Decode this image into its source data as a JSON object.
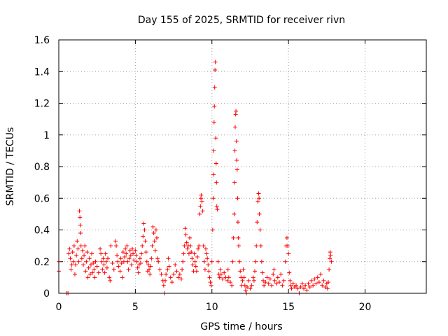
{
  "colors": {
    "series": "#ff0000",
    "grid": "#a0a0a0",
    "frame": "#000000"
  },
  "chart_data": {
    "type": "scatter",
    "title": "Day 155 of 2025, SRMTID for receiver rivn",
    "xlabel": "GPS time / hours",
    "ylabel": "SRMTID / TECUs",
    "xlim": [
      0,
      24
    ],
    "ylim": [
      0,
      1.6
    ],
    "xticks": [
      0,
      5,
      10,
      15,
      20
    ],
    "xtick_labels": [
      "0",
      "5",
      "10",
      "15",
      "20"
    ],
    "yticks": [
      0,
      0.2,
      0.4,
      0.6,
      0.8,
      1.0,
      1.2,
      1.4,
      1.6
    ],
    "ytick_labels": [
      "0",
      "0.2",
      "0.4",
      "0.6",
      "0.8",
      "1",
      "1.2",
      "1.4",
      "1.6"
    ],
    "grid": true,
    "marker": "plus",
    "series": [
      {
        "name": "SRMTID",
        "points": [
          [
            0.0,
            0.2
          ],
          [
            0.0,
            0.14
          ],
          [
            0.5,
            0.0
          ],
          [
            0.6,
            0.0
          ],
          [
            0.65,
            0.25
          ],
          [
            0.7,
            0.28
          ],
          [
            0.75,
            0.22
          ],
          [
            0.8,
            0.15
          ],
          [
            0.85,
            0.18
          ],
          [
            0.9,
            0.26
          ],
          [
            0.95,
            0.2
          ],
          [
            1.0,
            0.3
          ],
          [
            1.05,
            0.12
          ],
          [
            1.1,
            0.18
          ],
          [
            1.15,
            0.24
          ],
          [
            1.2,
            0.33
          ],
          [
            1.25,
            0.28
          ],
          [
            1.3,
            0.2
          ],
          [
            1.35,
            0.52
          ],
          [
            1.38,
            0.48
          ],
          [
            1.4,
            0.43
          ],
          [
            1.42,
            0.38
          ],
          [
            1.45,
            0.3
          ],
          [
            1.5,
            0.22
          ],
          [
            1.55,
            0.27
          ],
          [
            1.6,
            0.18
          ],
          [
            1.65,
            0.24
          ],
          [
            1.7,
            0.3
          ],
          [
            1.75,
            0.14
          ],
          [
            1.8,
            0.2
          ],
          [
            1.85,
            0.26
          ],
          [
            1.9,
            0.1
          ],
          [
            1.95,
            0.16
          ],
          [
            2.0,
            0.22
          ],
          [
            2.05,
            0.12
          ],
          [
            2.1,
            0.18
          ],
          [
            2.15,
            0.25
          ],
          [
            2.2,
            0.13
          ],
          [
            2.25,
            0.19
          ],
          [
            2.3,
            0.15
          ],
          [
            2.35,
            0.1
          ],
          [
            2.4,
            0.2
          ],
          [
            2.5,
            0.17
          ],
          [
            2.6,
            0.13
          ],
          [
            2.7,
            0.28
          ],
          [
            2.75,
            0.25
          ],
          [
            2.8,
            0.2
          ],
          [
            2.85,
            0.15
          ],
          [
            2.9,
            0.22
          ],
          [
            2.95,
            0.18
          ],
          [
            3.0,
            0.13
          ],
          [
            3.05,
            0.25
          ],
          [
            3.1,
            0.2
          ],
          [
            3.15,
            0.16
          ],
          [
            3.2,
            0.22
          ],
          [
            3.3,
            0.1
          ],
          [
            3.35,
            0.08
          ],
          [
            3.4,
            0.3
          ],
          [
            3.5,
            0.19
          ],
          [
            3.6,
            0.15
          ],
          [
            3.7,
            0.33
          ],
          [
            3.75,
            0.3
          ],
          [
            3.8,
            0.24
          ],
          [
            3.85,
            0.2
          ],
          [
            3.9,
            0.17
          ],
          [
            4.0,
            0.14
          ],
          [
            4.05,
            0.22
          ],
          [
            4.1,
            0.19
          ],
          [
            4.15,
            0.1
          ],
          [
            4.2,
            0.26
          ],
          [
            4.25,
            0.2
          ],
          [
            4.3,
            0.23
          ],
          [
            4.35,
            0.28
          ],
          [
            4.4,
            0.25
          ],
          [
            4.45,
            0.3
          ],
          [
            4.5,
            0.2
          ],
          [
            4.55,
            0.15
          ],
          [
            4.6,
            0.22
          ],
          [
            4.65,
            0.27
          ],
          [
            4.7,
            0.24
          ],
          [
            4.75,
            0.18
          ],
          [
            4.8,
            0.28
          ],
          [
            4.85,
            0.25
          ],
          [
            4.9,
            0.21
          ],
          [
            5.0,
            0.27
          ],
          [
            5.05,
            0.24
          ],
          [
            5.1,
            0.2
          ],
          [
            5.15,
            0.16
          ],
          [
            5.2,
            0.13
          ],
          [
            5.25,
            0.18
          ],
          [
            5.3,
            0.22
          ],
          [
            5.35,
            0.19
          ],
          [
            5.4,
            0.25
          ],
          [
            5.45,
            0.3
          ],
          [
            5.5,
            0.36
          ],
          [
            5.55,
            0.44
          ],
          [
            5.6,
            0.4
          ],
          [
            5.65,
            0.33
          ],
          [
            5.7,
            0.26
          ],
          [
            5.75,
            0.2
          ],
          [
            5.8,
            0.14
          ],
          [
            5.85,
            0.18
          ],
          [
            5.9,
            0.15
          ],
          [
            5.95,
            0.12
          ],
          [
            6.0,
            0.17
          ],
          [
            6.05,
            0.22
          ],
          [
            6.1,
            0.3
          ],
          [
            6.15,
            0.42
          ],
          [
            6.2,
            0.38
          ],
          [
            6.25,
            0.33
          ],
          [
            6.3,
            0.27
          ],
          [
            6.35,
            0.4
          ],
          [
            6.4,
            0.35
          ],
          [
            6.45,
            0.22
          ],
          [
            6.5,
            0.2
          ],
          [
            6.6,
            0.15
          ],
          [
            6.7,
            0.12
          ],
          [
            6.8,
            0.08
          ],
          [
            6.85,
            0.05
          ],
          [
            6.9,
            0.0
          ],
          [
            6.95,
            0.08
          ],
          [
            7.0,
            0.12
          ],
          [
            7.1,
            0.15
          ],
          [
            7.15,
            0.22
          ],
          [
            7.2,
            0.17
          ],
          [
            7.3,
            0.1
          ],
          [
            7.4,
            0.07
          ],
          [
            7.5,
            0.12
          ],
          [
            7.6,
            0.18
          ],
          [
            7.7,
            0.14
          ],
          [
            7.8,
            0.1
          ],
          [
            7.9,
            0.12
          ],
          [
            8.0,
            0.09
          ],
          [
            8.05,
            0.15
          ],
          [
            8.1,
            0.2
          ],
          [
            8.15,
            0.25
          ],
          [
            8.2,
            0.3
          ],
          [
            8.25,
            0.41
          ],
          [
            8.3,
            0.37
          ],
          [
            8.35,
            0.32
          ],
          [
            8.4,
            0.28
          ],
          [
            8.45,
            0.3
          ],
          [
            8.5,
            0.25
          ],
          [
            8.55,
            0.35
          ],
          [
            8.6,
            0.3
          ],
          [
            8.65,
            0.26
          ],
          [
            8.7,
            0.22
          ],
          [
            8.75,
            0.18
          ],
          [
            8.8,
            0.14
          ],
          [
            8.85,
            0.25
          ],
          [
            8.9,
            0.2
          ],
          [
            8.95,
            0.17
          ],
          [
            9.0,
            0.14
          ],
          [
            9.05,
            0.23
          ],
          [
            9.1,
            0.28
          ],
          [
            9.15,
            0.3
          ],
          [
            9.2,
            0.5
          ],
          [
            9.25,
            0.55
          ],
          [
            9.28,
            0.6
          ],
          [
            9.3,
            0.62
          ],
          [
            9.35,
            0.58
          ],
          [
            9.4,
            0.52
          ],
          [
            9.45,
            0.3
          ],
          [
            9.5,
            0.2
          ],
          [
            9.55,
            0.15
          ],
          [
            9.6,
            0.28
          ],
          [
            9.65,
            0.25
          ],
          [
            9.7,
            0.22
          ],
          [
            9.75,
            0.18
          ],
          [
            9.8,
            0.14
          ],
          [
            9.85,
            0.1
          ],
          [
            9.9,
            0.07
          ],
          [
            9.95,
            0.05
          ],
          [
            10.0,
            0.2
          ],
          [
            10.05,
            0.4
          ],
          [
            10.08,
            0.6
          ],
          [
            10.1,
            0.75
          ],
          [
            10.12,
            0.9
          ],
          [
            10.14,
            1.08
          ],
          [
            10.16,
            1.18
          ],
          [
            10.18,
            1.3
          ],
          [
            10.2,
            1.41
          ],
          [
            10.22,
            1.46
          ],
          [
            10.25,
            0.98
          ],
          [
            10.28,
            0.82
          ],
          [
            10.3,
            0.7
          ],
          [
            10.32,
            0.55
          ],
          [
            10.35,
            0.53
          ],
          [
            10.4,
            0.2
          ],
          [
            10.45,
            0.12
          ],
          [
            10.5,
            0.1
          ],
          [
            10.55,
            0.15
          ],
          [
            10.6,
            0.12
          ],
          [
            10.7,
            0.09
          ],
          [
            10.8,
            0.13
          ],
          [
            10.9,
            0.1
          ],
          [
            11.0,
            0.08
          ],
          [
            11.05,
            0.15
          ],
          [
            11.1,
            0.1
          ],
          [
            11.2,
            0.07
          ],
          [
            11.3,
            0.05
          ],
          [
            11.35,
            0.2
          ],
          [
            11.4,
            0.35
          ],
          [
            11.45,
            0.5
          ],
          [
            11.48,
            0.7
          ],
          [
            11.5,
            0.9
          ],
          [
            11.52,
            1.05
          ],
          [
            11.55,
            1.13
          ],
          [
            11.57,
            1.15
          ],
          [
            11.6,
            0.96
          ],
          [
            11.62,
            0.84
          ],
          [
            11.65,
            0.78
          ],
          [
            11.68,
            0.6
          ],
          [
            11.7,
            0.45
          ],
          [
            11.72,
            0.35
          ],
          [
            11.75,
            0.3
          ],
          [
            11.8,
            0.2
          ],
          [
            11.85,
            0.14
          ],
          [
            11.9,
            0.1
          ],
          [
            11.95,
            0.05
          ],
          [
            12.0,
            0.08
          ],
          [
            12.05,
            0.15
          ],
          [
            12.1,
            0.1
          ],
          [
            12.15,
            0.05
          ],
          [
            12.2,
            0.02
          ],
          [
            12.25,
            0.0
          ],
          [
            12.3,
            0.04
          ],
          [
            12.4,
            0.08
          ],
          [
            12.5,
            0.03
          ],
          [
            12.6,
            0.05
          ],
          [
            12.7,
            0.1
          ],
          [
            12.75,
            0.08
          ],
          [
            12.8,
            0.14
          ],
          [
            12.85,
            0.2
          ],
          [
            12.9,
            0.3
          ],
          [
            12.95,
            0.45
          ],
          [
            13.0,
            0.58
          ],
          [
            13.05,
            0.63
          ],
          [
            13.08,
            0.6
          ],
          [
            13.1,
            0.5
          ],
          [
            13.15,
            0.4
          ],
          [
            13.2,
            0.3
          ],
          [
            13.25,
            0.2
          ],
          [
            13.3,
            0.13
          ],
          [
            13.35,
            0.08
          ],
          [
            13.4,
            0.05
          ],
          [
            13.5,
            0.07
          ],
          [
            13.6,
            0.1
          ],
          [
            13.7,
            0.06
          ],
          [
            13.8,
            0.09
          ],
          [
            13.9,
            0.05
          ],
          [
            14.0,
            0.12
          ],
          [
            14.05,
            0.15
          ],
          [
            14.1,
            0.08
          ],
          [
            14.2,
            0.06
          ],
          [
            14.3,
            0.1
          ],
          [
            14.4,
            0.07
          ],
          [
            14.5,
            0.12
          ],
          [
            14.6,
            0.05
          ],
          [
            14.7,
            0.08
          ],
          [
            14.8,
            0.2
          ],
          [
            14.85,
            0.3
          ],
          [
            14.9,
            0.35
          ],
          [
            14.95,
            0.3
          ],
          [
            15.0,
            0.25
          ],
          [
            15.05,
            0.13
          ],
          [
            15.1,
            0.08
          ],
          [
            15.15,
            0.05
          ],
          [
            15.2,
            0.03
          ],
          [
            15.3,
            0.06
          ],
          [
            15.4,
            0.04
          ],
          [
            15.5,
            0.05
          ],
          [
            15.6,
            0.03
          ],
          [
            15.7,
            0.0
          ],
          [
            15.8,
            0.04
          ],
          [
            15.9,
            0.06
          ],
          [
            16.0,
            0.03
          ],
          [
            16.1,
            0.05
          ],
          [
            16.2,
            0.02
          ],
          [
            16.3,
            0.06
          ],
          [
            16.4,
            0.04
          ],
          [
            16.5,
            0.08
          ],
          [
            16.6,
            0.05
          ],
          [
            16.7,
            0.09
          ],
          [
            16.8,
            0.06
          ],
          [
            16.9,
            0.1
          ],
          [
            17.0,
            0.07
          ],
          [
            17.1,
            0.12
          ],
          [
            17.2,
            0.05
          ],
          [
            17.3,
            0.08
          ],
          [
            17.4,
            0.04
          ],
          [
            17.5,
            0.06
          ],
          [
            17.55,
            0.03
          ],
          [
            17.6,
            0.07
          ],
          [
            17.65,
            0.15
          ],
          [
            17.7,
            0.22
          ],
          [
            17.72,
            0.26
          ],
          [
            17.75,
            0.24
          ],
          [
            17.8,
            0.2
          ]
        ]
      }
    ]
  }
}
